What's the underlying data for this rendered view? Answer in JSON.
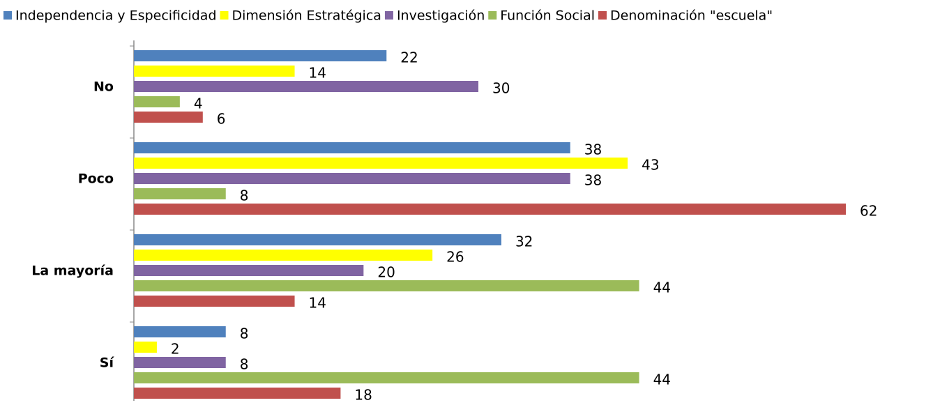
{
  "chart_data": {
    "type": "hbar",
    "categories": [
      "No",
      "Poco",
      "La mayoría",
      "Sí"
    ],
    "series": [
      {
        "name": "Independencia y Especificidad",
        "color": "#4f81bd",
        "values": [
          22,
          38,
          32,
          8
        ]
      },
      {
        "name": "Dimensión Estratégica",
        "color": "#ffff00",
        "values": [
          14,
          43,
          26,
          2
        ]
      },
      {
        "name": "Investigación",
        "color": "#8064a2",
        "values": [
          30,
          38,
          20,
          8
        ]
      },
      {
        "name": "Función Social",
        "color": "#9bbb59",
        "values": [
          4,
          8,
          44,
          44
        ]
      },
      {
        "name": "Denominación \"escuela\"",
        "color": "#c0504d",
        "values": [
          6,
          62,
          14,
          18
        ]
      }
    ],
    "xlim": [
      0,
      62
    ],
    "legend": "top"
  }
}
